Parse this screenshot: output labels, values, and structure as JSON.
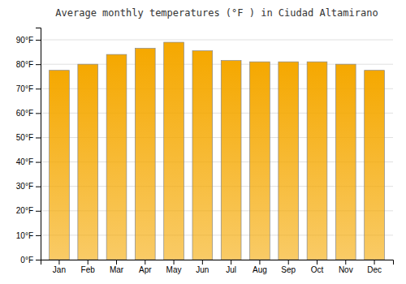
{
  "chart_data": {
    "type": "bar",
    "title": "Average monthly temperatures (°F ) in Ciudad Altamirano",
    "categories": [
      "Jan",
      "Feb",
      "Mar",
      "Apr",
      "May",
      "Jun",
      "Jul",
      "Aug",
      "Sep",
      "Oct",
      "Nov",
      "Dec"
    ],
    "values": [
      77.5,
      80.0,
      84.0,
      86.5,
      89.0,
      85.5,
      81.5,
      81.0,
      81.0,
      81.0,
      80.0,
      77.5
    ],
    "color": "#F5A800",
    "ylim": [
      0,
      95
    ],
    "yticks": [
      {
        "value": 0,
        "label": "0°F"
      },
      {
        "value": 10,
        "label": "10°F"
      },
      {
        "value": 20,
        "label": "20°F"
      },
      {
        "value": 30,
        "label": "30°F"
      },
      {
        "value": 40,
        "label": "40°F"
      },
      {
        "value": 50,
        "label": "50°F"
      },
      {
        "value": 60,
        "label": "60°F"
      },
      {
        "value": 70,
        "label": "70°F"
      },
      {
        "value": 80,
        "label": "80°F"
      },
      {
        "value": 90,
        "label": "90°F"
      }
    ],
    "grid": true
  }
}
